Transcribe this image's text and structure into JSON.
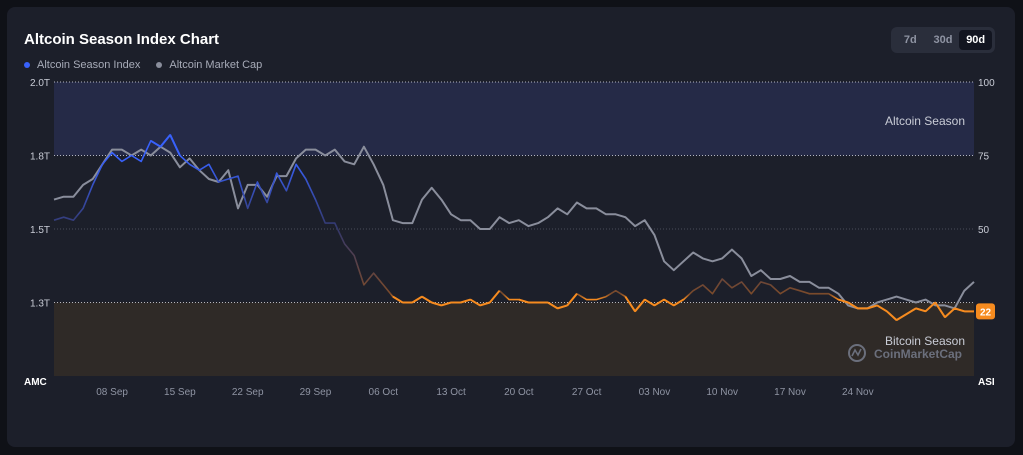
{
  "title": "Altcoin Season Index Chart",
  "legend": [
    {
      "label": "Altcoin Season Index",
      "color": "#3861fb"
    },
    {
      "label": "Altcoin Market Cap",
      "color": "#8a8e9c"
    }
  ],
  "range_buttons": [
    "7d",
    "30d",
    "90d"
  ],
  "active_range": "90d",
  "watermark": "CoinMarketCap",
  "colors": {
    "altcoin_zone": "#252a47",
    "bitcoin_zone": "#2f2a27",
    "index_blue": "#3861fb",
    "index_orange": "#f68b1f",
    "market_cap": "#8a8e9c"
  },
  "chart_data": {
    "type": "line",
    "title": "Altcoin Season Index Chart",
    "x_ticks": [
      "08 Sep",
      "15 Sep",
      "22 Sep",
      "29 Sep",
      "06 Oct",
      "13 Oct",
      "20 Oct",
      "27 Oct",
      "03 Nov",
      "10 Nov",
      "17 Nov",
      "24 Nov"
    ],
    "x_range": [
      "02 Sep",
      "03 Dec"
    ],
    "left_axis": {
      "label": "AMC",
      "ticks": [
        "1.3T",
        "1.5T",
        "1.8T",
        "2.0T"
      ]
    },
    "right_axis": {
      "label": "ASI",
      "ticks": [
        "50",
        "75",
        "100"
      ],
      "range": [
        0,
        100
      ]
    },
    "zones": {
      "altcoin": {
        "label": "Altcoin Season",
        "min": 75,
        "max": 100
      },
      "bitcoin": {
        "label": "Bitcoin Season",
        "min": 0,
        "max": 25
      }
    },
    "current_index_label": "22",
    "series": [
      {
        "name": "Altcoin Season Index",
        "values": [
          53,
          54,
          53,
          57,
          65,
          72,
          76,
          73,
          75,
          73,
          80,
          78,
          82,
          75,
          72,
          70,
          72,
          66,
          67,
          68,
          57,
          66,
          59,
          69,
          63,
          72,
          67,
          60,
          52,
          52,
          45,
          41,
          31,
          35,
          31,
          27,
          25,
          25,
          27,
          25,
          24,
          25,
          25,
          26,
          24,
          25,
          29,
          26,
          26,
          25,
          25,
          25,
          23,
          24,
          28,
          26,
          26,
          27,
          29,
          27,
          22,
          26,
          24,
          26,
          24,
          26,
          29,
          31,
          28,
          33,
          30,
          32,
          28,
          32,
          31,
          28,
          30,
          29,
          28,
          28,
          28,
          26,
          25,
          23,
          23,
          24,
          22,
          19,
          21,
          23,
          22,
          25,
          20,
          23,
          22,
          22
        ]
      },
      {
        "name": "Altcoin Market Cap",
        "values": [
          60,
          61,
          61,
          65,
          67,
          72,
          77,
          77,
          75,
          77,
          75,
          78,
          76,
          71,
          74,
          70,
          67,
          66,
          70,
          57,
          65,
          65,
          61,
          68,
          68,
          74,
          77,
          77,
          75,
          77,
          73,
          72,
          78,
          72,
          65,
          53,
          52,
          52,
          60,
          64,
          60,
          55,
          53,
          53,
          50,
          50,
          54,
          52,
          53,
          51,
          52,
          54,
          57,
          55,
          59,
          57,
          57,
          55,
          55,
          54,
          51,
          53,
          48,
          39,
          36,
          39,
          42,
          40,
          39,
          40,
          43,
          40,
          34,
          36,
          33,
          33,
          34,
          32,
          32,
          30,
          30,
          28,
          24,
          23,
          23,
          25,
          26,
          27,
          26,
          25,
          26,
          24,
          24,
          23,
          29,
          32
        ]
      }
    ]
  }
}
